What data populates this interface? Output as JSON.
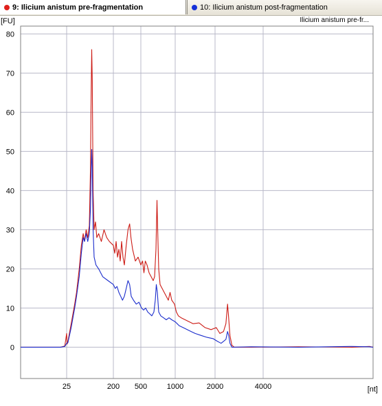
{
  "tabs": [
    {
      "label": "9: Ilicium anistum pre-fragmentation",
      "color": "#e0201c",
      "active": true
    },
    {
      "label": "10: Ilicium anistum post-fragmentation",
      "color": "#1530d8",
      "active": false
    }
  ],
  "chart_data": {
    "type": "line",
    "title": "Ilicium anistum pre-fr...",
    "ylabel": "[FU]",
    "xlabel": "[nt]",
    "ylim": [
      -8,
      82
    ],
    "yticks": [
      0,
      10,
      20,
      30,
      40,
      50,
      60,
      70,
      80
    ],
    "xlim": [
      -50,
      7100
    ],
    "xticks": [
      {
        "label": "25",
        "x": 25
      },
      {
        "label": "200",
        "x": 200
      },
      {
        "label": "500",
        "x": 500
      },
      {
        "label": "1000",
        "x": 1000
      },
      {
        "label": "2000",
        "x": 2000
      },
      {
        "label": "4000",
        "x": 4000
      }
    ],
    "x_scale": "nonlinear ladder (piecewise)",
    "grid": true,
    "series": [
      {
        "name": "9: Ilicium anistum pre-fragmentation",
        "color": "#cc1a14",
        "points": [
          [
            -50,
            0
          ],
          [
            15,
            0
          ],
          [
            22,
            0.3
          ],
          [
            25,
            3.5
          ],
          [
            27,
            0.8
          ],
          [
            30,
            1.5
          ],
          [
            42,
            6
          ],
          [
            55,
            11
          ],
          [
            62,
            14
          ],
          [
            72,
            20
          ],
          [
            80,
            26
          ],
          [
            87,
            29
          ],
          [
            92,
            27
          ],
          [
            98,
            30
          ],
          [
            104,
            28
          ],
          [
            110,
            31
          ],
          [
            114,
            45
          ],
          [
            117,
            65
          ],
          [
            119,
            76
          ],
          [
            121,
            68
          ],
          [
            124,
            40
          ],
          [
            128,
            30
          ],
          [
            133,
            32
          ],
          [
            138,
            28
          ],
          [
            145,
            29
          ],
          [
            155,
            27
          ],
          [
            165,
            30
          ],
          [
            175,
            28
          ],
          [
            185,
            27
          ],
          [
            200,
            26
          ],
          [
            215,
            24
          ],
          [
            230,
            27
          ],
          [
            245,
            23
          ],
          [
            260,
            25
          ],
          [
            275,
            22
          ],
          [
            290,
            27
          ],
          [
            305,
            23
          ],
          [
            320,
            21
          ],
          [
            340,
            26
          ],
          [
            360,
            30
          ],
          [
            378,
            31.5
          ],
          [
            392,
            28
          ],
          [
            410,
            25
          ],
          [
            440,
            22
          ],
          [
            470,
            23
          ],
          [
            500,
            21
          ],
          [
            525,
            22
          ],
          [
            545,
            19
          ],
          [
            565,
            22
          ],
          [
            590,
            21
          ],
          [
            620,
            19
          ],
          [
            650,
            18
          ],
          [
            680,
            17
          ],
          [
            700,
            18
          ],
          [
            720,
            25
          ],
          [
            735,
            37.5
          ],
          [
            748,
            28
          ],
          [
            760,
            20
          ],
          [
            780,
            16
          ],
          [
            810,
            15
          ],
          [
            840,
            14
          ],
          [
            870,
            13
          ],
          [
            900,
            12
          ],
          [
            925,
            14
          ],
          [
            950,
            12
          ],
          [
            990,
            11
          ],
          [
            1030,
            9
          ],
          [
            1080,
            8
          ],
          [
            1150,
            7.5
          ],
          [
            1250,
            7
          ],
          [
            1350,
            6.5
          ],
          [
            1450,
            6
          ],
          [
            1600,
            6.2
          ],
          [
            1750,
            5
          ],
          [
            1900,
            4.5
          ],
          [
            2050,
            5
          ],
          [
            2200,
            3.5
          ],
          [
            2350,
            4
          ],
          [
            2450,
            6
          ],
          [
            2520,
            11
          ],
          [
            2560,
            8
          ],
          [
            2620,
            3
          ],
          [
            2700,
            0.5
          ],
          [
            2800,
            0
          ],
          [
            3500,
            0
          ],
          [
            5000,
            0.1
          ],
          [
            6500,
            0
          ],
          [
            7000,
            0.2
          ],
          [
            7100,
            0
          ]
        ]
      },
      {
        "name": "10: Ilicium anistum post-fragmentation",
        "color": "#1a2ccc",
        "points": [
          [
            -50,
            0
          ],
          [
            15,
            0
          ],
          [
            22,
            0.2
          ],
          [
            25,
            1
          ],
          [
            30,
            1.2
          ],
          [
            42,
            5
          ],
          [
            55,
            10
          ],
          [
            62,
            13
          ],
          [
            72,
            18
          ],
          [
            80,
            24
          ],
          [
            87,
            28
          ],
          [
            92,
            27
          ],
          [
            98,
            29
          ],
          [
            104,
            27
          ],
          [
            110,
            29
          ],
          [
            114,
            35
          ],
          [
            117,
            45
          ],
          [
            119,
            50.5
          ],
          [
            121,
            46
          ],
          [
            124,
            30
          ],
          [
            128,
            23
          ],
          [
            135,
            21
          ],
          [
            145,
            20
          ],
          [
            160,
            18
          ],
          [
            180,
            17
          ],
          [
            200,
            16
          ],
          [
            220,
            15
          ],
          [
            240,
            15.5
          ],
          [
            260,
            14
          ],
          [
            280,
            13
          ],
          [
            300,
            12
          ],
          [
            320,
            13
          ],
          [
            340,
            15
          ],
          [
            360,
            17
          ],
          [
            378,
            16
          ],
          [
            395,
            13
          ],
          [
            420,
            12
          ],
          [
            450,
            11
          ],
          [
            480,
            11.5
          ],
          [
            510,
            10
          ],
          [
            540,
            9.5
          ],
          [
            570,
            10
          ],
          [
            600,
            9
          ],
          [
            630,
            8.5
          ],
          [
            660,
            8
          ],
          [
            690,
            9
          ],
          [
            710,
            12
          ],
          [
            725,
            16
          ],
          [
            740,
            14
          ],
          [
            760,
            9
          ],
          [
            790,
            8
          ],
          [
            830,
            7.5
          ],
          [
            870,
            7
          ],
          [
            910,
            7.5
          ],
          [
            950,
            7
          ],
          [
            1000,
            6.5
          ],
          [
            1050,
            6
          ],
          [
            1100,
            5.5
          ],
          [
            1200,
            5
          ],
          [
            1300,
            4.5
          ],
          [
            1400,
            4
          ],
          [
            1500,
            3.5
          ],
          [
            1650,
            3
          ],
          [
            1800,
            2.5
          ],
          [
            1950,
            2.2
          ],
          [
            2100,
            1.5
          ],
          [
            2250,
            1
          ],
          [
            2350,
            1.5
          ],
          [
            2450,
            2
          ],
          [
            2520,
            4
          ],
          [
            2570,
            3
          ],
          [
            2620,
            1
          ],
          [
            2700,
            0
          ],
          [
            3500,
            0.1
          ],
          [
            5000,
            0
          ],
          [
            6500,
            0.2
          ],
          [
            7000,
            0.1
          ],
          [
            7100,
            0
          ]
        ]
      }
    ]
  }
}
